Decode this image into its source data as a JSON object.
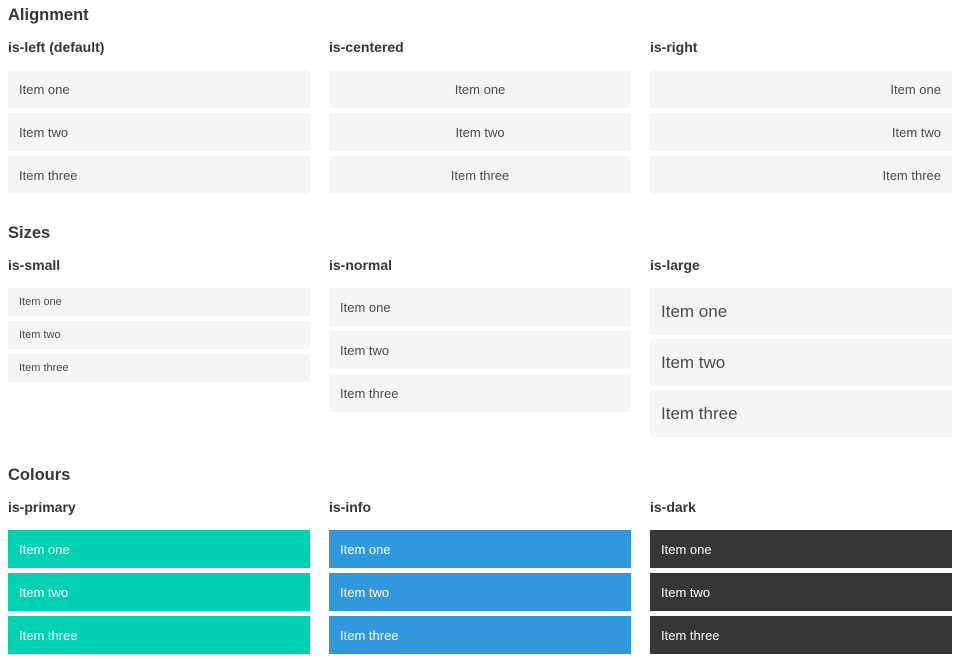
{
  "sections": [
    {
      "title": "Alignment",
      "columns": [
        {
          "label": "is-left (default)",
          "items": [
            "Item one",
            "Item two",
            "Item three"
          ]
        },
        {
          "label": "is-centered",
          "items": [
            "Item one",
            "Item two",
            "Item three"
          ]
        },
        {
          "label": "is-right",
          "items": [
            "Item one",
            "Item two",
            "Item three"
          ]
        }
      ]
    },
    {
      "title": "Sizes",
      "columns": [
        {
          "label": "is-small",
          "items": [
            "Item one",
            "Item two",
            "Item three"
          ]
        },
        {
          "label": "is-normal",
          "items": [
            "Item one",
            "Item two",
            "Item three"
          ]
        },
        {
          "label": "is-large",
          "items": [
            "Item one",
            "Item two",
            "Item three"
          ]
        }
      ]
    },
    {
      "title": "Colours",
      "columns": [
        {
          "label": "is-primary",
          "items": [
            "Item one",
            "Item two",
            "Item three"
          ]
        },
        {
          "label": "is-info",
          "items": [
            "Item one",
            "Item two",
            "Item three"
          ]
        },
        {
          "label": "is-dark",
          "items": [
            "Item one",
            "Item two",
            "Item three"
          ]
        }
      ]
    }
  ],
  "colors": {
    "primary": "#00d1b2",
    "info": "#3298dc",
    "dark": "#363636",
    "item_bg": "#f5f5f5",
    "item_text": "#4a4a4a",
    "heading_text": "#363636"
  }
}
